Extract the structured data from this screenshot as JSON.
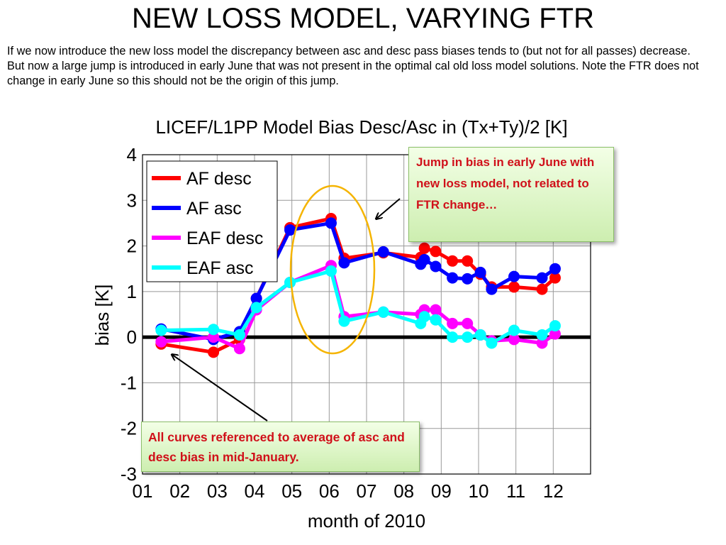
{
  "slide": {
    "title": "NEW LOSS MODEL, VARYING FTR",
    "paragraph": "If we now introduce the new loss model the discrepancy between asc and desc pass biases tends to (but not for all passes) decrease. But now a large jump is introduced in early June that was not present  in the optimal cal old loss model solutions. Note the FTR does not change in early June so this should not be the origin of this jump."
  },
  "callouts": {
    "jump": "Jump in bias in early June with new loss model, not related to FTR change…",
    "reference": "All curves referenced to average of asc and desc bias in mid-January."
  },
  "colors": {
    "af_desc": "#ff0000",
    "af_asc": "#0000ff",
    "eaf_desc": "#ff00ff",
    "eaf_asc": "#00ffff",
    "highlight_ellipse": "#f5b400",
    "zero_line": "#000000",
    "callout_text": "#d0101a"
  },
  "chart_data": {
    "type": "line",
    "title": "LICEF/L1PP Model Bias Desc/Asc in (Tx+Ty)/2 [K]",
    "xlabel": "month of 2010",
    "ylabel": "bias [K]",
    "xlim": [
      1,
      13
    ],
    "ylim": [
      -3,
      4
    ],
    "x_tick_labels": [
      "01",
      "02",
      "03",
      "04",
      "05",
      "06",
      "07",
      "08",
      "09",
      "10",
      "11",
      "12"
    ],
    "y_ticks": [
      -3,
      -2,
      -1,
      0,
      1,
      2,
      3,
      4
    ],
    "grid": true,
    "legend_position": "top-left",
    "reference_line": 0,
    "series": [
      {
        "name": "AF desc",
        "color": "#ff0000",
        "x": [
          1.5,
          2.9,
          3.6,
          4.05,
          4.95,
          6.05,
          6.4,
          7.45,
          8.45,
          8.55,
          8.85,
          9.3,
          9.7,
          10.05,
          10.35,
          10.95,
          11.7,
          12.05
        ],
        "y": [
          -0.15,
          -0.33,
          -0.05,
          0.85,
          2.4,
          2.6,
          1.73,
          1.85,
          1.75,
          1.95,
          1.88,
          1.67,
          1.67,
          1.38,
          1.1,
          1.1,
          1.05,
          1.3
        ]
      },
      {
        "name": "AF asc",
        "color": "#0000ff",
        "x": [
          1.5,
          2.9,
          3.6,
          4.05,
          4.95,
          6.05,
          6.4,
          7.45,
          8.45,
          8.55,
          8.85,
          9.3,
          9.7,
          10.05,
          10.35,
          10.95,
          11.7,
          12.05
        ],
        "y": [
          0.18,
          -0.05,
          0.12,
          0.85,
          2.35,
          2.5,
          1.63,
          1.87,
          1.6,
          1.7,
          1.55,
          1.3,
          1.28,
          1.42,
          1.05,
          1.33,
          1.3,
          1.5
        ]
      },
      {
        "name": "EAF desc",
        "color": "#ff00ff",
        "x": [
          1.5,
          2.9,
          3.6,
          4.05,
          4.95,
          6.05,
          6.4,
          7.45,
          8.45,
          8.55,
          8.85,
          9.3,
          9.7,
          10.05,
          10.35,
          10.95,
          11.7,
          12.05
        ],
        "y": [
          -0.1,
          0.0,
          -0.25,
          0.6,
          1.2,
          1.57,
          0.45,
          0.55,
          0.5,
          0.6,
          0.6,
          0.3,
          0.3,
          0.05,
          -0.08,
          -0.05,
          -0.13,
          0.07
        ]
      },
      {
        "name": "EAF asc",
        "color": "#00ffff",
        "x": [
          1.5,
          2.9,
          3.6,
          4.05,
          4.95,
          6.05,
          6.4,
          7.45,
          8.45,
          8.55,
          8.85,
          9.3,
          9.7,
          10.05,
          10.35,
          10.95,
          11.7,
          12.05
        ],
        "y": [
          0.15,
          0.17,
          0.05,
          0.65,
          1.2,
          1.45,
          0.35,
          0.55,
          0.3,
          0.45,
          0.38,
          0.0,
          0.0,
          0.05,
          -0.13,
          0.15,
          0.05,
          0.25
        ]
      }
    ]
  }
}
